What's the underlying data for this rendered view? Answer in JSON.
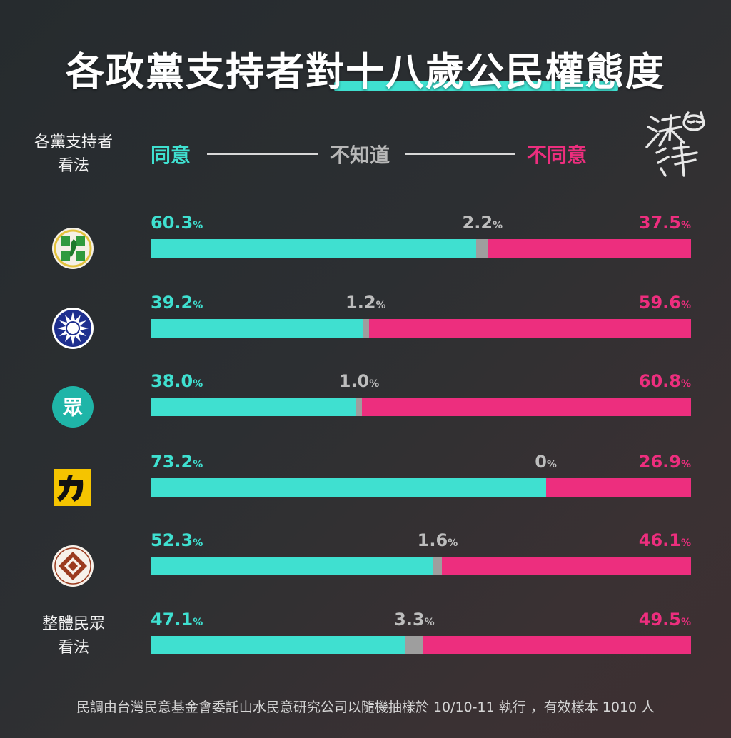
{
  "title_part1": "各政黨支持者對",
  "title_part2": "十八歲公民權",
  "title_part3": "態度",
  "side_label_top": [
    "各黨支持者",
    "看法"
  ],
  "legend": {
    "agree": "同意",
    "unknown": "不知道",
    "disagree": "不同意"
  },
  "signature": "沃草",
  "colors": {
    "agree": "#3fe0d0",
    "unknown": "#9e9e9e",
    "disagree": "#ed2e7e",
    "background": "#2a2d30"
  },
  "chart_data": {
    "type": "bar",
    "stacked": true,
    "orientation": "horizontal",
    "categories": [
      "民進黨",
      "國民黨",
      "台灣民眾黨",
      "時代力量",
      "台灣基進",
      "整體民眾"
    ],
    "category_labels": [
      "",
      "",
      "",
      "",
      "",
      "整體民眾 看法"
    ],
    "series": [
      {
        "name": "同意",
        "values": [
          60.3,
          39.2,
          38.0,
          73.2,
          52.3,
          47.1
        ],
        "labels": [
          "60.3",
          "39.2",
          "38.0",
          "73.2",
          "52.3",
          "47.1"
        ]
      },
      {
        "name": "不知道",
        "values": [
          2.2,
          1.2,
          1.0,
          0,
          1.6,
          3.3
        ],
        "labels": [
          "2.2",
          "1.2",
          "1.0",
          "0",
          "1.6",
          "3.3"
        ]
      },
      {
        "name": "不同意",
        "values": [
          37.5,
          59.6,
          60.8,
          26.9,
          46.1,
          49.5
        ],
        "labels": [
          "37.5",
          "59.6",
          "60.8",
          "26.9",
          "46.1",
          "49.5"
        ]
      }
    ],
    "unit": "%",
    "xlim": [
      0,
      100
    ],
    "legend_position": "top",
    "logos": [
      "dpp-logo",
      "kmt-logo",
      "tpp-logo",
      "npp-logo",
      "tsp-logo",
      ""
    ]
  },
  "footer": "民調由台灣民意基金會委託山水民意研究公司以隨機抽樣於 10/10-11 執行 ，有效樣本 1010 人"
}
